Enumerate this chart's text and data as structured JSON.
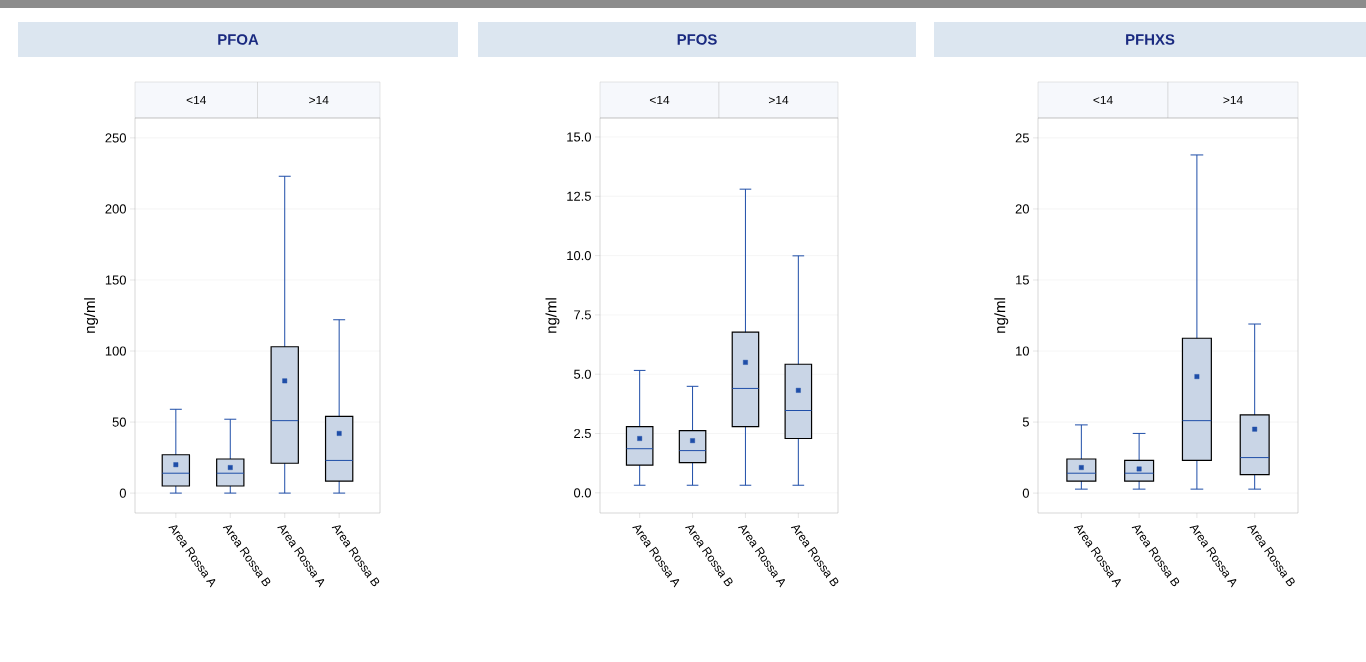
{
  "chart_data": [
    {
      "type": "box",
      "title": "PFOA",
      "ylabel": "ng/ml",
      "categories": [
        "Area Rossa A",
        "Area Rossa B",
        "Area Rossa A",
        "Area Rossa B"
      ],
      "annotations": [
        "<14",
        ">14"
      ],
      "ylim": [
        -14,
        264
      ],
      "yticks": [
        0,
        50,
        100,
        150,
        200,
        250
      ],
      "grid": "y",
      "series": [
        {
          "color": "#c9d5e6",
          "boxes": [
            {
              "low": 0,
              "q1": 5,
              "median": 14,
              "q3": 27,
              "high": 59,
              "mean": 20
            },
            {
              "low": 0,
              "q1": 5,
              "median": 14,
              "q3": 24,
              "high": 52,
              "mean": 18
            },
            {
              "low": 0,
              "q1": 21,
              "median": 51,
              "q3": 103,
              "high": 223,
              "mean": 79
            },
            {
              "low": 0,
              "q1": 8.5,
              "median": 23,
              "q3": 54,
              "high": 122,
              "mean": 42
            }
          ]
        }
      ]
    },
    {
      "type": "box",
      "title": "PFOS",
      "ylabel": "ng/ml",
      "categories": [
        "Area Rossa A",
        "Area Rossa B",
        "Area Rossa A",
        "Area Rossa B"
      ],
      "annotations": [
        "<14",
        ">14"
      ],
      "ylim": [
        -0.85,
        15.8
      ],
      "yticks": [
        {
          "value": 0,
          "label": "0.0"
        },
        2.5,
        {
          "value": 5,
          "label": "5.0"
        },
        7.5,
        {
          "value": 10,
          "label": "10.0"
        },
        12.5,
        {
          "value": 15,
          "label": "15.0"
        }
      ],
      "grid": "y",
      "series": [
        {
          "color": "#c9d5e6",
          "boxes": [
            {
              "low": 0.32,
              "q1": 1.17,
              "median": 1.86,
              "q3": 2.79,
              "high": 5.16,
              "mean": 2.29
            },
            {
              "low": 0.32,
              "q1": 1.27,
              "median": 1.78,
              "q3": 2.62,
              "high": 4.49,
              "mean": 2.2
            },
            {
              "low": 0.32,
              "q1": 2.79,
              "median": 4.4,
              "q3": 6.77,
              "high": 12.8,
              "mean": 5.5
            },
            {
              "low": 0.32,
              "q1": 2.29,
              "median": 3.47,
              "q3": 5.42,
              "high": 9.99,
              "mean": 4.32
            }
          ]
        }
      ]
    },
    {
      "type": "box",
      "title": "PFHXS",
      "ylabel": "ng/ml",
      "categories": [
        "Area Rossa A",
        "Area Rossa B",
        "Area Rossa A",
        "Area Rossa B"
      ],
      "annotations": [
        "<14",
        ">14"
      ],
      "ylim": [
        -1.4,
        26.4
      ],
      "yticks": [
        0,
        5,
        10,
        15,
        20,
        25
      ],
      "grid": "y",
      "series": [
        {
          "color": "#c9d5e6",
          "boxes": [
            {
              "low": 0.28,
              "q1": 0.85,
              "median": 1.4,
              "q3": 2.4,
              "high": 4.8,
              "mean": 1.8
            },
            {
              "low": 0.28,
              "q1": 0.85,
              "median": 1.4,
              "q3": 2.3,
              "high": 4.2,
              "mean": 1.7
            },
            {
              "low": 0.28,
              "q1": 2.3,
              "median": 5.1,
              "q3": 10.9,
              "high": 23.8,
              "mean": 8.2
            },
            {
              "low": 0.28,
              "q1": 1.3,
              "median": 2.5,
              "q3": 5.5,
              "high": 11.9,
              "mean": 4.5
            }
          ]
        }
      ]
    }
  ]
}
